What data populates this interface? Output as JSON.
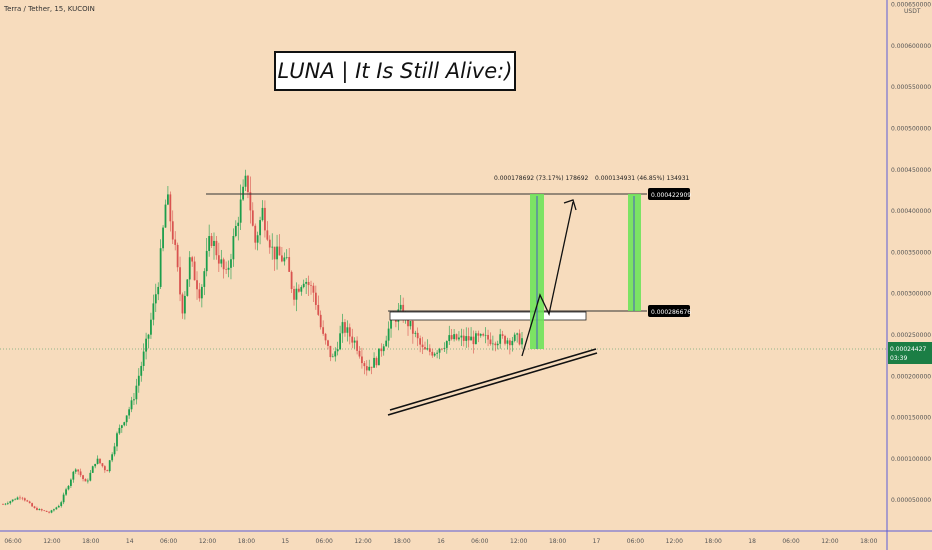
{
  "header": {
    "symbol": "Terra / Tether, 15, KUCOIN"
  },
  "title": "LUNA | It Is Still Alive:)",
  "chart_data": {
    "type": "candlestick",
    "y_unit_label": "USDT",
    "ylim": [
      2e-05,
      0.00067
    ],
    "y_ticks": [
      {
        "value": 0.00065,
        "label": "0.000650000"
      },
      {
        "value": 0.0006,
        "label": "0.000600000"
      },
      {
        "value": 0.00055,
        "label": "0.000550000"
      },
      {
        "value": 0.0005,
        "label": "0.000500000"
      },
      {
        "value": 0.00045,
        "label": "0.000450000"
      },
      {
        "value": 0.0004,
        "label": "0.000400000"
      },
      {
        "value": 0.00035,
        "label": "0.000350000"
      },
      {
        "value": 0.0003,
        "label": "0.000300000"
      },
      {
        "value": 0.00025,
        "label": "0.000250000"
      },
      {
        "value": 0.0002,
        "label": "0.000200000"
      },
      {
        "value": 0.00015,
        "label": "0.000150000"
      },
      {
        "value": 0.0001,
        "label": "0.000100000"
      },
      {
        "value": 5e-05,
        "label": "0.000050000"
      }
    ],
    "x_ticks": [
      "06:00",
      "12:00",
      "18:00",
      "14",
      "06:00",
      "12:00",
      "18:00",
      "15",
      "06:00",
      "12:00",
      "18:00",
      "16",
      "06:00",
      "12:00",
      "18:00",
      "17",
      "06:00",
      "12:00",
      "18:00",
      "18",
      "06:00",
      "12:00",
      "18:00"
    ],
    "current_price": {
      "value": 0.00024427,
      "label": "0.00024427&#8203;5",
      "countdown": "03:39"
    },
    "price_levels": [
      {
        "value": 0.000422909,
        "label": "0.000422909"
      },
      {
        "value": 0.000286676,
        "label": "0.000286676"
      }
    ],
    "measurements": [
      {
        "label": "0.000178692 (73.17%) 178692",
        "from": 0.000244217,
        "to": 0.000422909
      },
      {
        "label": "0.000134931 (46.85%) 134931",
        "from": 0.000287978,
        "to": 0.000422909
      }
    ],
    "up_color": "#1b9e4b",
    "down_color": "#d9534f",
    "highlight_color": "#6ee35a",
    "range_box_color": "#ffffff",
    "axis_line_color": "#5b5bd6",
    "tag_color": "#000000",
    "current_tag_color": "#1b7e45",
    "path": [
      [
        0,
        4.5e-05
      ],
      [
        0.035,
        5.5e-05
      ],
      [
        0.06,
        4e-05
      ],
      [
        0.09,
        3.5e-05
      ],
      [
        0.11,
        4.5e-05
      ],
      [
        0.14,
        9e-05
      ],
      [
        0.16,
        7e-05
      ],
      [
        0.18,
        0.0001
      ],
      [
        0.2,
        8.5e-05
      ],
      [
        0.22,
        0.00013
      ],
      [
        0.25,
        0.00017
      ],
      [
        0.28,
        0.00025
      ],
      [
        0.3,
        0.00032
      ],
      [
        0.315,
        0.00042
      ],
      [
        0.33,
        0.00036
      ],
      [
        0.345,
        0.00028
      ],
      [
        0.36,
        0.00034
      ],
      [
        0.38,
        0.0003
      ],
      [
        0.4,
        0.00037
      ],
      [
        0.43,
        0.00032
      ],
      [
        0.455,
        0.0004
      ],
      [
        0.47,
        0.00044
      ],
      [
        0.485,
        0.00036
      ],
      [
        0.5,
        0.0004
      ],
      [
        0.52,
        0.00035
      ],
      [
        0.545,
        0.00034
      ],
      [
        0.56,
        0.0003
      ],
      [
        0.58,
        0.00032
      ],
      [
        0.6,
        0.0003
      ],
      [
        0.615,
        0.00025
      ],
      [
        0.635,
        0.00022
      ],
      [
        0.655,
        0.00026
      ],
      [
        0.68,
        0.00024
      ],
      [
        0.7,
        0.00021
      ],
      [
        0.72,
        0.00022
      ],
      [
        0.745,
        0.00026
      ],
      [
        0.765,
        0.00028
      ],
      [
        0.785,
        0.00026
      ],
      [
        0.81,
        0.00023
      ],
      [
        0.83,
        0.00023
      ],
      [
        0.86,
        0.000245
      ]
    ]
  }
}
